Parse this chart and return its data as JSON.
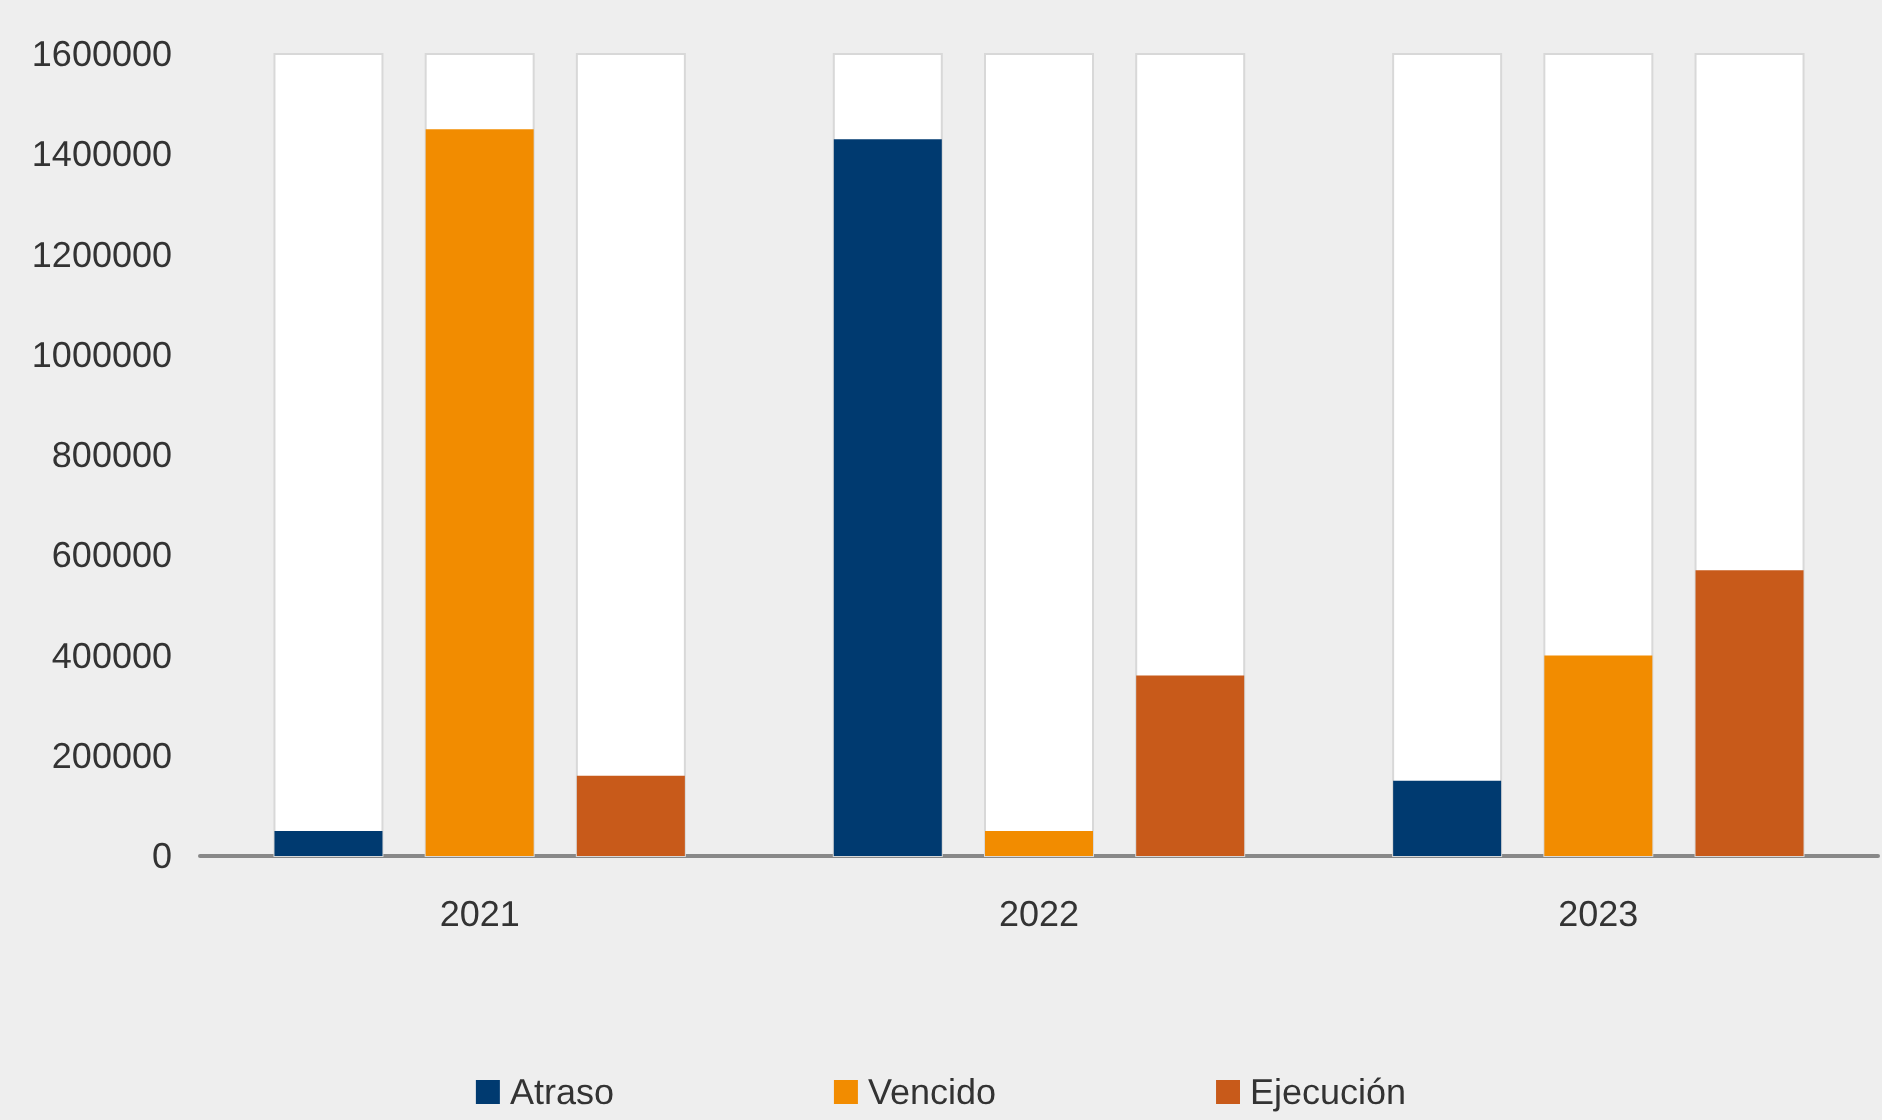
{
  "chart_data": {
    "type": "bar",
    "categories": [
      "2021",
      "2022",
      "2023"
    ],
    "series": [
      {
        "name": "Atraso",
        "color": "#003a70",
        "values": [
          50000,
          1430000,
          150000
        ]
      },
      {
        "name": "Vencido",
        "color": "#f28c00",
        "values": [
          1450000,
          50000,
          400000
        ]
      },
      {
        "name": "Ejecución",
        "color": "#c85a1a",
        "values": [
          160000,
          360000,
          570000
        ]
      }
    ],
    "ylim": [
      0,
      1600000
    ],
    "yticks": [
      0,
      200000,
      400000,
      600000,
      800000,
      1000000,
      1200000,
      1400000,
      1600000
    ],
    "grid": false,
    "legend": "bottom"
  }
}
